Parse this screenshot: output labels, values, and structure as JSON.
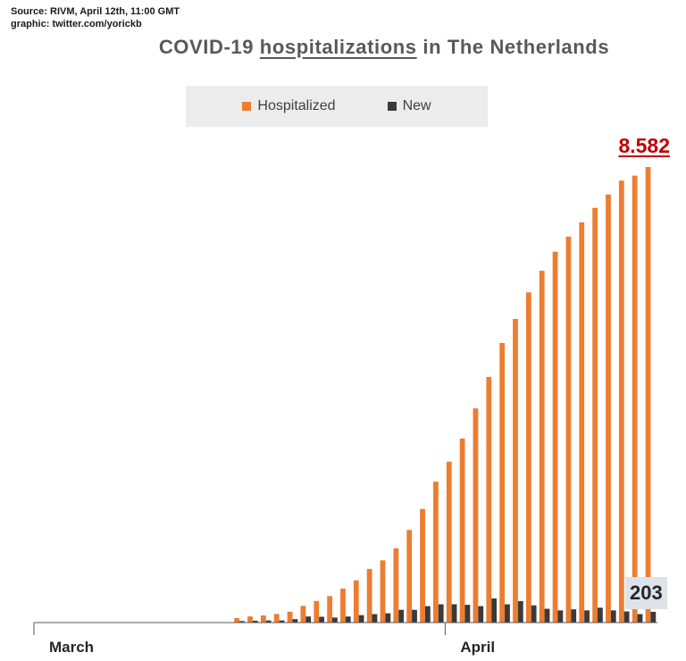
{
  "source_line": "Source: RIVM, April 12th, 11:00 GMT",
  "graphic_line": "graphic: twitter.com/yorickb",
  "title": {
    "before": "COVID-19 ",
    "underlined": "hospitalizations",
    "after": " in The Netherlands"
  },
  "legend": {
    "hospitalized": "Hospitalized",
    "new": "New"
  },
  "colors": {
    "hospitalized": "#ed7d31",
    "new": "#3a3a3a",
    "highlight": "#c00000"
  },
  "callouts": {
    "total": "8.582",
    "new": "203"
  },
  "chart_data": {
    "type": "bar",
    "title": "COVID-19 hospitalizations in The Netherlands",
    "x_labels": [
      "March",
      "April"
    ],
    "series": [
      {
        "name": "Hospitalized",
        "values": [
          0,
          0,
          0,
          0,
          0,
          0,
          0,
          0,
          0,
          0,
          0,
          0,
          0,
          0,
          0,
          86,
          115,
          136,
          162,
          205,
          314,
          408,
          499,
          640,
          795,
          1011,
          1173,
          1398,
          1746,
          2141,
          2654,
          3031,
          3467,
          4035,
          4629,
          5267,
          5720,
          6221,
          6628,
          6986,
          7271,
          7539,
          7812,
          8065,
          8326,
          8420,
          8582
        ]
      },
      {
        "name": "New",
        "values": [
          0,
          0,
          0,
          0,
          0,
          0,
          0,
          0,
          0,
          0,
          0,
          0,
          0,
          0,
          0,
          28,
          35,
          40,
          40,
          65,
          115,
          110,
          95,
          115,
          140,
          160,
          175,
          240,
          240,
          310,
          345,
          345,
          335,
          310,
          455,
          345,
          405,
          325,
          260,
          230,
          250,
          230,
          280,
          230,
          210,
          160,
          203
        ]
      }
    ],
    "ylim": [
      0,
      8582
    ]
  }
}
